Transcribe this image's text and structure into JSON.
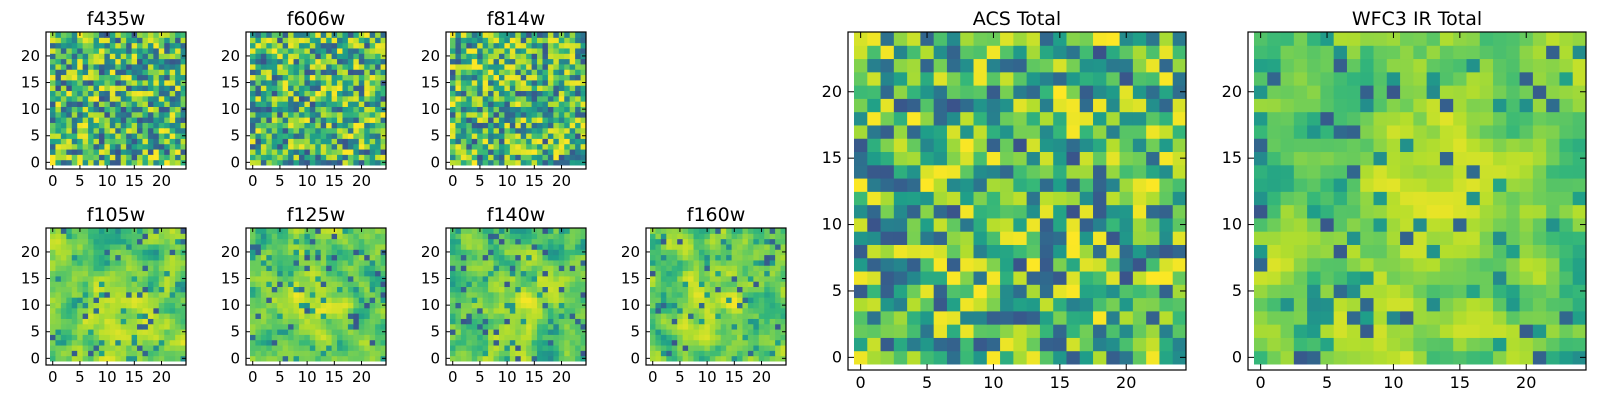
{
  "chart_data": [
    {
      "type": "heatmap",
      "title": "f435w",
      "x_ticks": [
        0,
        5,
        10,
        15,
        20
      ],
      "y_ticks": [
        0,
        5,
        10,
        15,
        20
      ],
      "xlim": [
        0,
        25
      ],
      "ylim": [
        0,
        25
      ],
      "grid": 25,
      "colormap": "viridis",
      "seed": 11,
      "structure": "noise",
      "contrast": 0.85
    },
    {
      "type": "heatmap",
      "title": "f606w",
      "x_ticks": [
        0,
        5,
        10,
        15,
        20
      ],
      "y_ticks": [
        0,
        5,
        10,
        15,
        20
      ],
      "xlim": [
        0,
        25
      ],
      "ylim": [
        0,
        25
      ],
      "grid": 25,
      "colormap": "viridis",
      "seed": 23,
      "structure": "noise",
      "contrast": 0.85
    },
    {
      "type": "heatmap",
      "title": "f814w",
      "x_ticks": [
        0,
        5,
        10,
        15,
        20
      ],
      "y_ticks": [
        0,
        5,
        10,
        15,
        20
      ],
      "xlim": [
        0,
        25
      ],
      "ylim": [
        0,
        25
      ],
      "grid": 25,
      "colormap": "viridis",
      "seed": 37,
      "structure": "noise",
      "contrast": 0.85
    },
    {
      "type": "heatmap",
      "title": "f105w",
      "x_ticks": [
        0,
        5,
        10,
        15,
        20
      ],
      "y_ticks": [
        0,
        5,
        10,
        15,
        20
      ],
      "xlim": [
        0,
        25
      ],
      "ylim": [
        0,
        25
      ],
      "grid": 25,
      "colormap": "viridis",
      "seed": 41,
      "structure": "smooth",
      "contrast": 0.7
    },
    {
      "type": "heatmap",
      "title": "f125w",
      "x_ticks": [
        0,
        5,
        10,
        15,
        20
      ],
      "y_ticks": [
        0,
        5,
        10,
        15,
        20
      ],
      "xlim": [
        0,
        25
      ],
      "ylim": [
        0,
        25
      ],
      "grid": 25,
      "colormap": "viridis",
      "seed": 53,
      "structure": "smooth",
      "contrast": 0.7
    },
    {
      "type": "heatmap",
      "title": "f140w",
      "x_ticks": [
        0,
        5,
        10,
        15,
        20
      ],
      "y_ticks": [
        0,
        5,
        10,
        15,
        20
      ],
      "xlim": [
        0,
        25
      ],
      "ylim": [
        0,
        25
      ],
      "grid": 25,
      "colormap": "viridis",
      "seed": 67,
      "structure": "smooth",
      "contrast": 0.7
    },
    {
      "type": "heatmap",
      "title": "f160w",
      "x_ticks": [
        0,
        5,
        10,
        15,
        20
      ],
      "y_ticks": [
        0,
        5,
        10,
        15,
        20
      ],
      "xlim": [
        0,
        25
      ],
      "ylim": [
        0,
        25
      ],
      "grid": 25,
      "colormap": "viridis",
      "seed": 79,
      "structure": "smooth",
      "contrast": 0.7
    },
    {
      "type": "heatmap",
      "title": "ACS Total",
      "x_ticks": [
        0,
        5,
        10,
        15,
        20
      ],
      "y_ticks": [
        0,
        5,
        10,
        15,
        20
      ],
      "xlim": [
        0,
        25
      ],
      "ylim": [
        0,
        25
      ],
      "grid": 25,
      "colormap": "viridis",
      "seed": 97,
      "structure": "noise",
      "contrast": 0.85
    },
    {
      "type": "heatmap",
      "title": "WFC3 IR Total",
      "x_ticks": [
        0,
        5,
        10,
        15,
        20
      ],
      "y_ticks": [
        0,
        5,
        10,
        15,
        20
      ],
      "xlim": [
        0,
        25
      ],
      "ylim": [
        0,
        25
      ],
      "grid": 25,
      "colormap": "viridis",
      "seed": 113,
      "structure": "smooth",
      "contrast": 0.65
    }
  ]
}
